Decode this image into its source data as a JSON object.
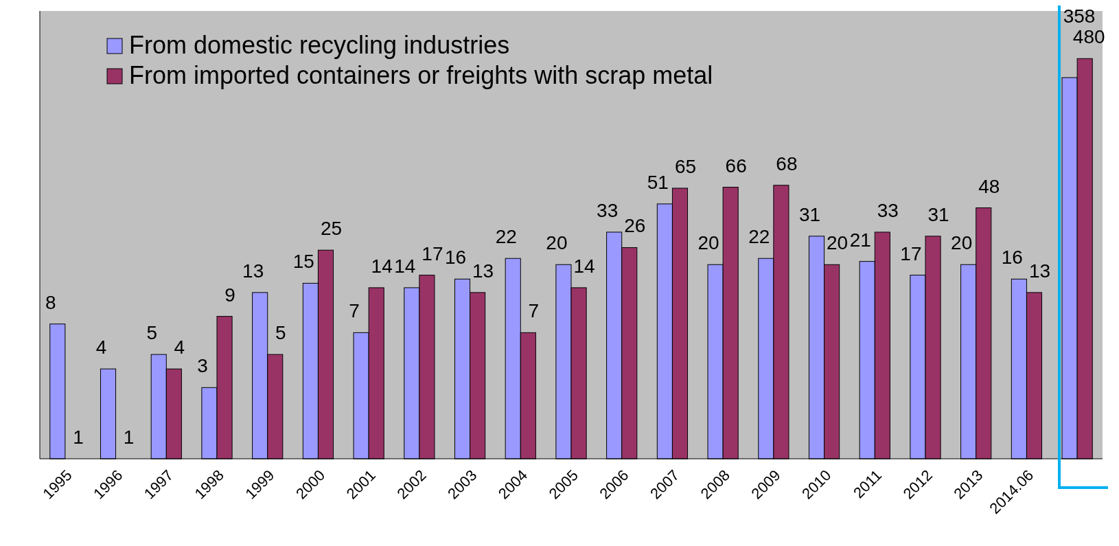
{
  "chart_data": {
    "type": "bar",
    "categories": [
      "1995",
      "1996",
      "1997",
      "1998",
      "1999",
      "2000",
      "2001",
      "2002",
      "2003",
      "2004",
      "2005",
      "2006",
      "2007",
      "2008",
      "2009",
      "2010",
      "2011",
      "2012",
      "2013",
      "2014.06",
      null
    ],
    "series": [
      {
        "name": "From domestic recycling industries",
        "color": "#9999ff",
        "values": [
          8,
          4,
          5,
          3,
          13,
          15,
          7,
          14,
          16,
          22,
          20,
          33,
          51,
          20,
          22,
          31,
          21,
          17,
          20,
          16,
          358
        ]
      },
      {
        "name": "From imported containers or freights with scrap metal",
        "color": "#993366",
        "values": [
          1,
          1,
          4,
          9,
          5,
          25,
          14,
          17,
          13,
          7,
          14,
          26,
          65,
          66,
          68,
          20,
          33,
          31,
          48,
          13,
          480
        ]
      }
    ],
    "ylim": [
      1,
      1000
    ],
    "log": true,
    "data_labels": true,
    "legend": "top left",
    "tick_labels": "x"
  }
}
